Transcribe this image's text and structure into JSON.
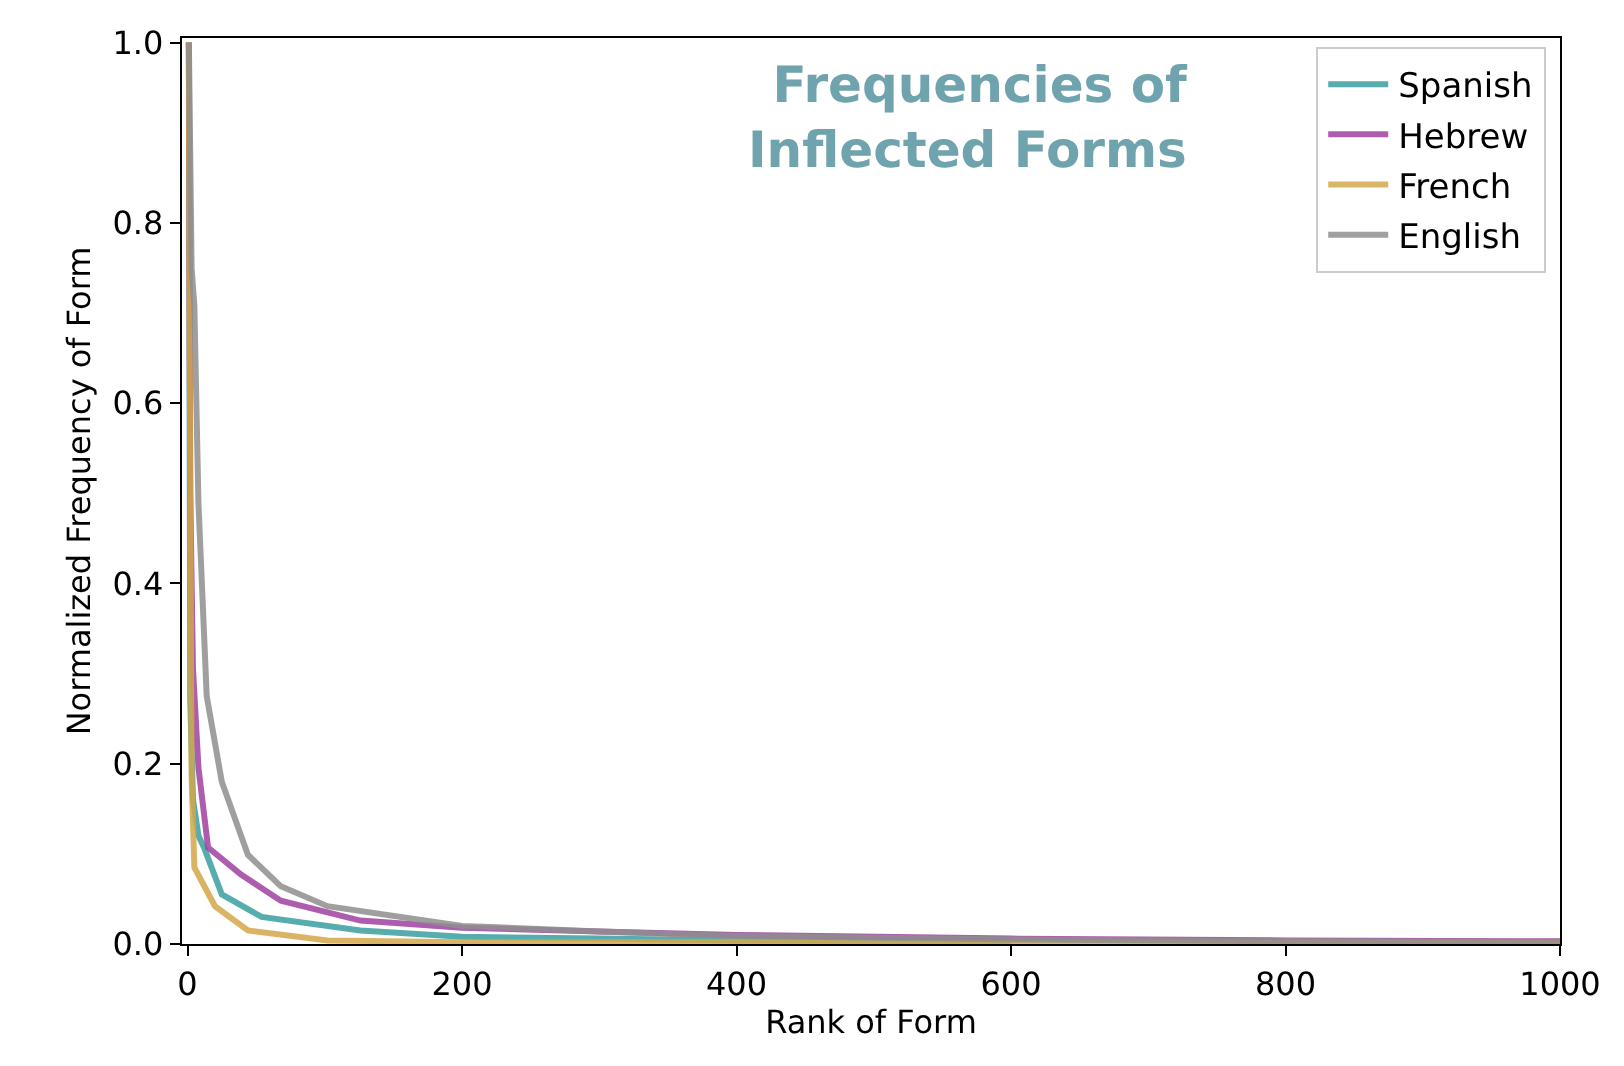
{
  "chart_data": {
    "type": "line",
    "title": "Frequencies of\nInflected Forms",
    "xlabel": "Rank of Form",
    "ylabel": "Normalized Frequency of Form",
    "xlim": [
      -4,
      1000
    ],
    "ylim": [
      0,
      1.005
    ],
    "xticks": [
      0,
      200,
      400,
      600,
      800,
      1000
    ],
    "yticks": [
      {
        "value": 0,
        "label": "0.0"
      },
      0.2,
      0.4,
      0.6,
      0.8,
      {
        "value": 1,
        "label": "1.0"
      }
    ],
    "legend": "top right",
    "marker": "none",
    "line_style": "solid",
    "series": [
      {
        "name": "Spanish",
        "color": "#3a9fa0",
        "x": [
          1,
          2,
          4,
          8,
          12,
          25,
          54,
          126,
          200,
          300,
          400,
          600
        ],
        "values": [
          1.0,
          0.27,
          0.16,
          0.12,
          0.107,
          0.055,
          0.03,
          0.015,
          0.008,
          0.006,
          0.004,
          0.003
        ]
      },
      {
        "name": "Hebrew",
        "color": "#a040a0",
        "x": [
          1,
          2,
          4,
          8,
          15,
          39,
          68,
          126,
          200,
          300,
          400,
          600,
          800,
          1000
        ],
        "values": [
          1.0,
          0.5,
          0.305,
          0.195,
          0.107,
          0.077,
          0.048,
          0.026,
          0.018,
          0.014,
          0.01,
          0.006,
          0.004,
          0.003
        ]
      },
      {
        "name": "French",
        "color": "#d4a84a",
        "x": [
          1,
          2,
          3,
          5,
          20,
          44,
          102,
          200,
          400,
          600,
          800,
          1000
        ],
        "values": [
          1.0,
          0.5,
          0.187,
          0.085,
          0.042,
          0.015,
          0.004,
          0.002,
          0.002,
          0.001,
          0.001,
          0.001
        ]
      },
      {
        "name": "English",
        "color": "#8f8f8f",
        "x": [
          1,
          3,
          5,
          8,
          14,
          25,
          44,
          68,
          102,
          200,
          300,
          400,
          600,
          800,
          1000
        ],
        "values": [
          1.0,
          0.75,
          0.708,
          0.488,
          0.275,
          0.18,
          0.099,
          0.064,
          0.042,
          0.02,
          0.014,
          0.009,
          0.005,
          0.003,
          0.002
        ]
      }
    ]
  }
}
